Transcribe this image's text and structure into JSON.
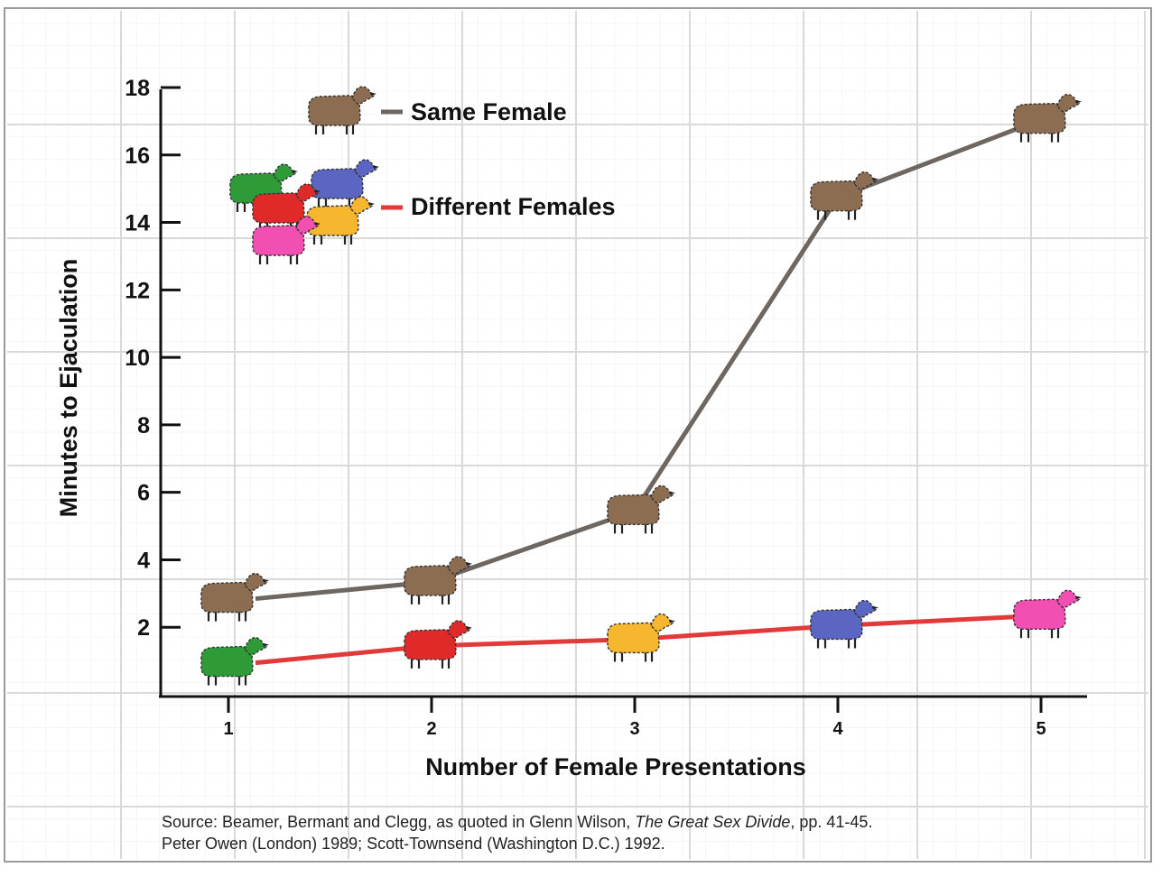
{
  "chart_data": {
    "type": "line",
    "title": "",
    "xlabel": "Number of Female Presentations",
    "ylabel": "Minutes to Ejaculation",
    "x": [
      1,
      2,
      3,
      4,
      5
    ],
    "x_ticks": [
      "1",
      "2",
      "3",
      "4",
      "5"
    ],
    "y_ticks": [
      "2",
      "4",
      "6",
      "8",
      "10",
      "12",
      "14",
      "16",
      "18"
    ],
    "ylim": [
      0,
      18
    ],
    "grid": true,
    "legend_position": "top-left",
    "series": [
      {
        "name": "Same Female",
        "color": "#6e6660",
        "values": [
          2.9,
          3.4,
          5.5,
          14.8,
          17.1
        ],
        "marker_colors": [
          "#8c6d52",
          "#8c6d52",
          "#8c6d52",
          "#8c6d52",
          "#8c6d52"
        ]
      },
      {
        "name": "Different Females",
        "color": "#e23a3a",
        "values": [
          1.0,
          1.5,
          1.7,
          2.1,
          2.4
        ],
        "marker_colors": [
          "#2e9b38",
          "#e02a2a",
          "#f6b62e",
          "#5a66c2",
          "#f24fb2"
        ]
      }
    ],
    "legend_flock_colors": [
      "#2e9b38",
      "#5a66c2",
      "#e02a2a",
      "#f6b62e",
      "#f24fb2"
    ]
  },
  "source": {
    "line1_prefix": "Source: Beamer, Bermant and Clegg, as quoted in Glenn Wilson, ",
    "line1_title": "The Great Sex Divide",
    "line1_suffix": ", pp. 41-45.",
    "line2": "Peter Owen (London) 1989; Scott-Townsend (Washington D.C.) 1992."
  }
}
